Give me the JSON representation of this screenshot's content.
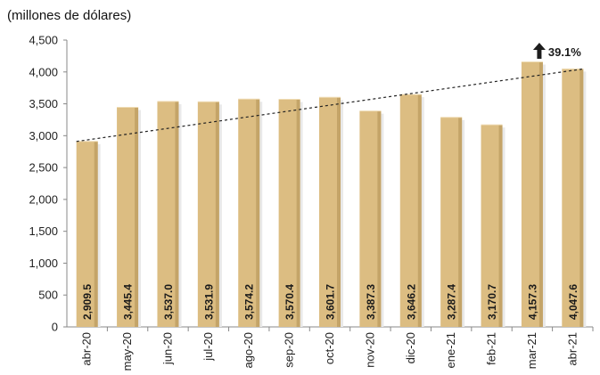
{
  "chart_data": {
    "type": "bar",
    "unit_label": "(millones de dólares)",
    "categories": [
      "abr-20",
      "may-20",
      "jun-20",
      "jul-20",
      "ago-20",
      "sep-20",
      "oct-20",
      "nov-20",
      "dic-20",
      "ene-21",
      "feb-21",
      "mar-21",
      "abr-21"
    ],
    "values": [
      2909.5,
      3445.4,
      3537.0,
      3531.9,
      3574.2,
      3570.4,
      3601.7,
      3387.3,
      3646.2,
      3287.4,
      3170.7,
      4157.3,
      4047.6
    ],
    "value_labels": [
      "2,909.5",
      "3,445.4",
      "3,537.0",
      "3,531.9",
      "3,574.2",
      "3,570.4",
      "3,601.7",
      "3,387.3",
      "3,646.2",
      "3,287.4",
      "3,170.7",
      "4,157.3",
      "4,047.6"
    ],
    "yticks": [
      "0",
      "500",
      "1,000",
      "1,500",
      "2,000",
      "2,500",
      "3,000",
      "3,500",
      "4,000",
      "4,500"
    ],
    "ylim": [
      0,
      4500
    ],
    "grid": false,
    "trendline": "dashed",
    "annotation": "39.1%",
    "colors": {
      "bar": "#dcbd82",
      "bar_side": "#b99a5c",
      "bar_shadow": "#e9e9e9",
      "axis": "#888888",
      "trend": "#222222",
      "arrow": "#1d1d1d"
    }
  }
}
